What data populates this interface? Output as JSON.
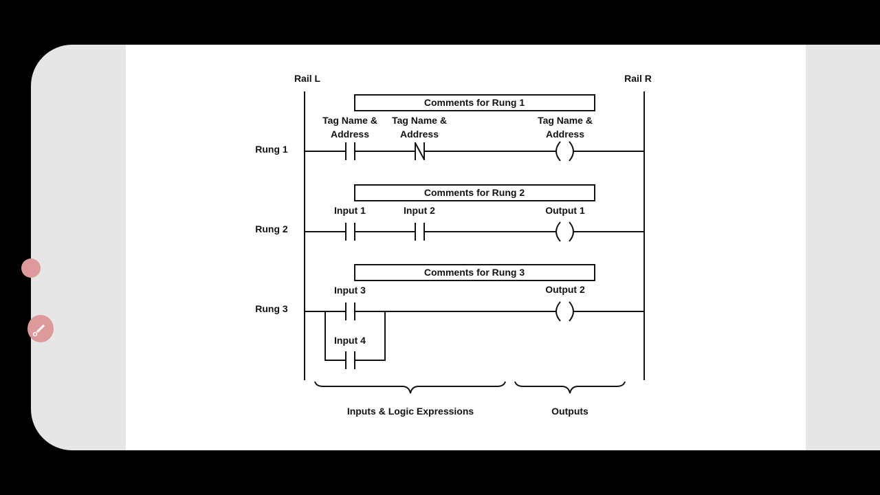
{
  "toolbar": {
    "icons": [
      "record-dot-icon",
      "pen-tool-icon"
    ],
    "accent": "#de9a9a"
  },
  "diagram": {
    "rail_left": "Rail L",
    "rail_right": "Rail R",
    "rungs": [
      {
        "label": "Rung 1",
        "comment": "Comments for Rung 1",
        "contact1": [
          "Tag Name &",
          "Address"
        ],
        "contact2": [
          "Tag Name &",
          "Address"
        ],
        "contact2_type": "normally-closed",
        "coil": [
          "Tag Name &",
          "Address"
        ]
      },
      {
        "label": "Rung 2",
        "comment": "Comments for Rung 2",
        "contact1": "Input 1",
        "contact2": "Input 2",
        "coil": "Output 1"
      },
      {
        "label": "Rung 3",
        "comment": "Comments for Rung 3",
        "contact1": "Input 3",
        "branch_contact": "Input 4",
        "coil": "Output 2"
      }
    ],
    "brace_inputs": "Inputs & Logic Expressions",
    "brace_outputs": "Outputs"
  }
}
